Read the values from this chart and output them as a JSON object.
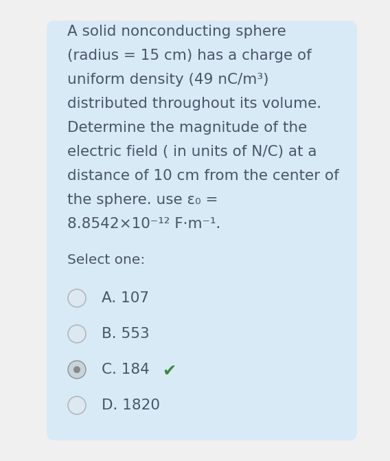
{
  "background_color": "#f0f0f0",
  "card_color": "#d8eaf5",
  "question_text_lines": [
    "A solid nonconducting sphere",
    "(radius = 15 cm) has a charge of",
    "uniform density (49 nC/m³)",
    "distributed throughout its volume.",
    "Determine the magnitude of the",
    "electric field ( in units of N/C) at a",
    "distance of 10 cm from the center of",
    "the sphere. use ε₀ =",
    "8.8542×10⁻¹² F·m⁻¹."
  ],
  "select_one_text": "Select one:",
  "options": [
    {
      "label": "A. 107",
      "selected": false,
      "correct": false
    },
    {
      "label": "B. 553",
      "selected": false,
      "correct": false
    },
    {
      "label": "C. 184",
      "selected": true,
      "correct": true
    },
    {
      "label": "D. 1820",
      "selected": false,
      "correct": false
    }
  ],
  "text_color": "#4a5568",
  "text_fontsize": 15.5,
  "select_fontsize": 14.5,
  "option_fontsize": 15.5,
  "radio_unselected_edge": "#b0b8c0",
  "radio_unselected_face": "#dde8f0",
  "radio_selected_edge": "#909090",
  "radio_selected_inner": "#888888",
  "radio_selected_face": "#c8d4dc",
  "checkmark_color": "#3a8a3a",
  "checkmark_text": "✔"
}
